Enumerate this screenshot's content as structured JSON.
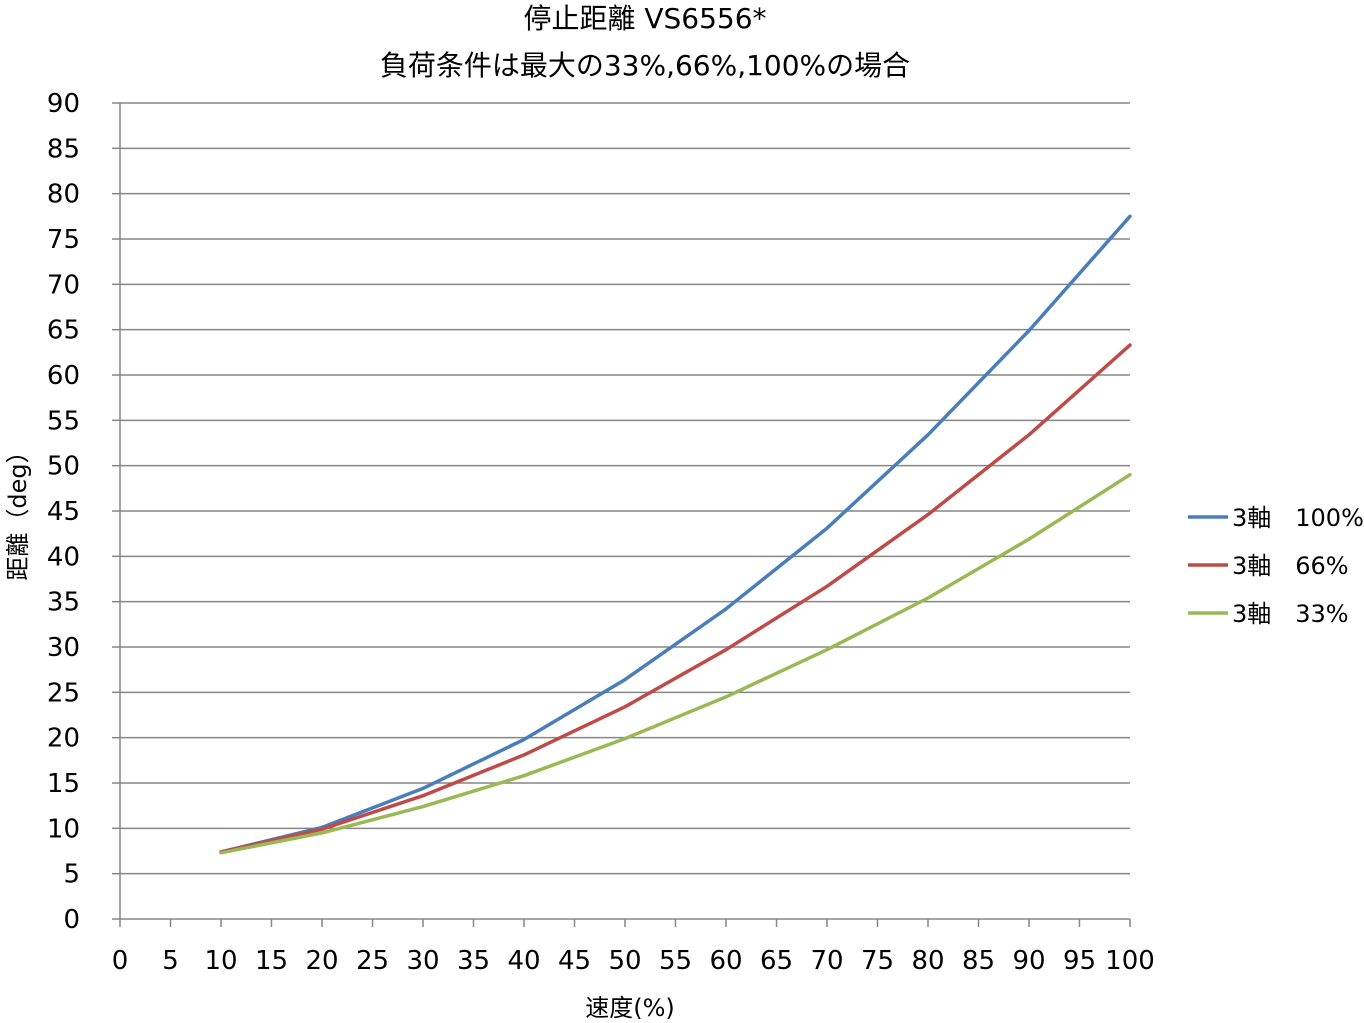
{
  "chart_data": {
    "type": "line",
    "title": "停止距離 VS6556*",
    "subtitle": "負荷条件は最大の33%,66%,100%の場合",
    "xlabel": "速度(%)",
    "ylabel": "距離（deg）",
    "xlim": [
      0,
      100
    ],
    "ylim": [
      0,
      90
    ],
    "x_ticks": [
      0,
      5,
      10,
      15,
      20,
      25,
      30,
      35,
      40,
      45,
      50,
      55,
      60,
      65,
      70,
      75,
      80,
      85,
      90,
      95,
      100
    ],
    "y_ticks": [
      0,
      5,
      10,
      15,
      20,
      25,
      30,
      35,
      40,
      45,
      50,
      55,
      60,
      65,
      70,
      75,
      80,
      85,
      90
    ],
    "grid": "horizontal",
    "legend_position": "right",
    "x": [
      10,
      20,
      30,
      40,
      50,
      60,
      70,
      80,
      90,
      100
    ],
    "series": [
      {
        "name": "3軸　100%",
        "color": "#4a7ebb",
        "values": [
          7.4,
          10.1,
          14.4,
          19.8,
          26.4,
          34.2,
          43.1,
          53.4,
          64.9,
          77.5
        ]
      },
      {
        "name": "3軸　66%",
        "color": "#be4b48",
        "values": [
          7.4,
          9.9,
          13.6,
          18.1,
          23.4,
          29.7,
          36.7,
          44.6,
          53.4,
          63.3
        ]
      },
      {
        "name": "3軸　33%",
        "color": "#98b954",
        "values": [
          7.3,
          9.5,
          12.4,
          15.8,
          19.9,
          24.5,
          29.7,
          35.4,
          41.9,
          49.0
        ]
      }
    ]
  }
}
